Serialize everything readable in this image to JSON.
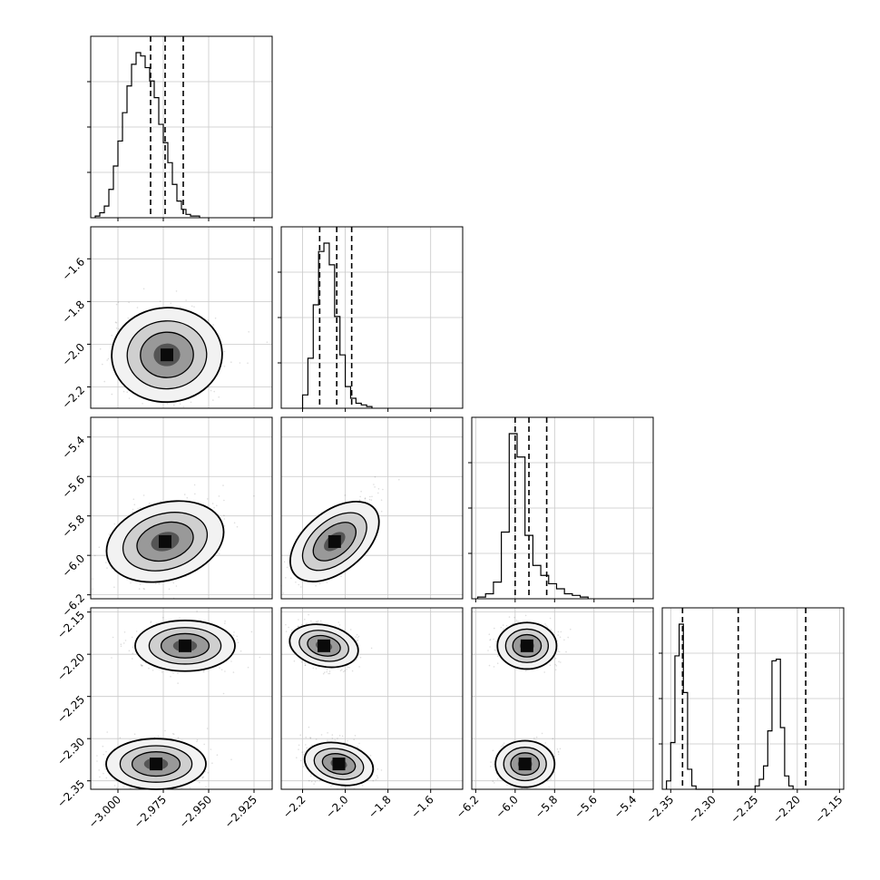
{
  "chart_data": {
    "type": "corner",
    "grid": true,
    "parameters": [
      {
        "range": [
          -3.015,
          -2.915
        ],
        "ticks": [
          -3.0,
          -2.975,
          -2.95,
          -2.925
        ],
        "tick_labels": [
          "−3.000",
          "−2.975",
          "−2.950",
          "−2.925"
        ],
        "quantiles": [
          -2.982,
          -2.974,
          -2.964
        ],
        "hist": {
          "edges_start": -3.0125,
          "bin_width": 0.0025,
          "counts": [
            1,
            3,
            7,
            17,
            31,
            46,
            63,
            79,
            92,
            99,
            97,
            90,
            82,
            72,
            56,
            45,
            33,
            20,
            10,
            5,
            2,
            1,
            1
          ]
        }
      },
      {
        "range": [
          -2.3,
          -1.45
        ],
        "ticks": [
          -2.2,
          -2.0,
          -1.8,
          -1.6
        ],
        "tick_labels": [
          "−2.2",
          "−2.0",
          "−1.8",
          "−1.6"
        ],
        "quantiles": [
          -2.12,
          -2.04,
          -1.97
        ],
        "hist": {
          "edges_start": -2.2,
          "bin_width": 0.025,
          "counts": [
            8,
            30,
            62,
            94,
            99,
            86,
            55,
            32,
            13,
            6,
            3,
            2,
            1
          ]
        }
      },
      {
        "range": [
          -6.22,
          -5.3
        ],
        "ticks": [
          -6.2,
          -6.0,
          -5.8,
          -5.6,
          -5.4
        ],
        "tick_labels": [
          "−6.2",
          "−6.0",
          "−5.8",
          "−5.6",
          "−5.4"
        ],
        "quantiles": [
          -6.0,
          -5.93,
          -5.84
        ],
        "hist": {
          "edges_start": -6.19,
          "bin_width": 0.04,
          "counts": [
            1,
            3,
            10,
            40,
            99,
            85,
            38,
            20,
            14,
            9,
            6,
            3,
            2,
            1
          ]
        }
      },
      {
        "range": [
          -2.36,
          -2.145
        ],
        "ticks": [
          -2.35,
          -2.3,
          -2.25,
          -2.2,
          -2.15
        ],
        "tick_labels": [
          "−2.35",
          "−2.30",
          "−2.25",
          "−2.20",
          "−2.15"
        ],
        "quantiles": [
          -2.336,
          -2.27,
          -2.19
        ],
        "hist": {
          "edges_start": -2.355,
          "bin_width": 0.005,
          "counts": [
            5,
            28,
            80,
            99,
            58,
            12,
            2,
            0,
            0,
            0,
            0,
            0,
            0,
            0,
            0,
            0,
            0,
            0,
            0,
            0,
            0,
            2,
            6,
            14,
            35,
            77,
            78,
            37,
            8,
            2
          ]
        }
      }
    ],
    "pairs": [
      {
        "row": 1,
        "col": 0,
        "mean": [
          -2.973,
          -2.05
        ],
        "sd": [
          0.012,
          0.09
        ],
        "rho": 0.05
      },
      {
        "row": 2,
        "col": 0,
        "mean": [
          -2.974,
          -5.93
        ],
        "sd": [
          0.012,
          0.09
        ],
        "rho": 0.35
      },
      {
        "row": 2,
        "col": 1,
        "mean": [
          -2.05,
          -5.93
        ],
        "sd": [
          0.08,
          0.09
        ],
        "rho": 0.78
      },
      {
        "row": 3,
        "col": 0,
        "modes": [
          [
            -2.963,
            -2.19
          ],
          [
            -2.979,
            -2.33
          ]
        ],
        "sd": [
          0.011,
          0.012
        ],
        "rho": 0.0
      },
      {
        "row": 3,
        "col": 1,
        "modes": [
          [
            -2.1,
            -2.19
          ],
          [
            -2.03,
            -2.33
          ]
        ],
        "sd": [
          0.06,
          0.011
        ],
        "rho": -0.3
      },
      {
        "row": 3,
        "col": 2,
        "modes": [
          [
            -5.94,
            -2.19
          ],
          [
            -5.95,
            -2.33
          ]
        ],
        "sd": [
          0.06,
          0.011
        ],
        "rho": 0.0
      }
    ]
  }
}
